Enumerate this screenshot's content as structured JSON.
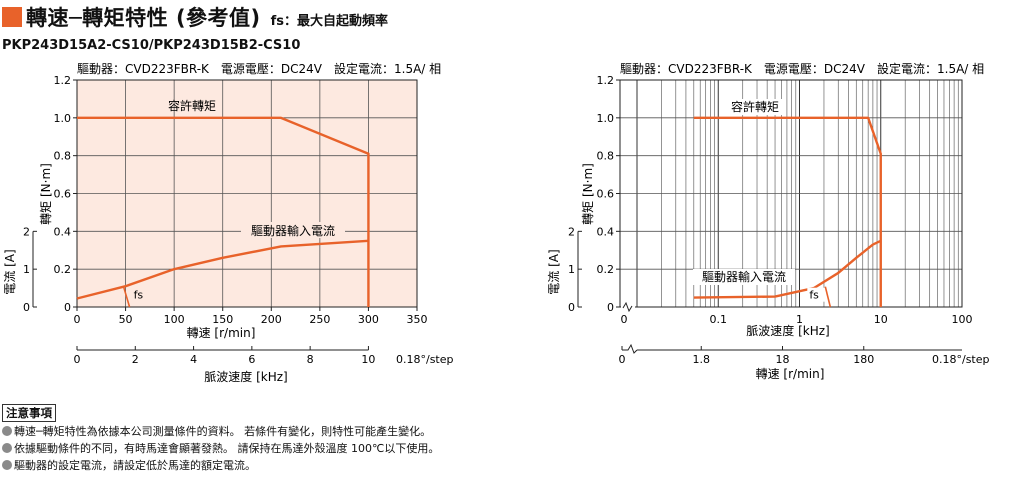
{
  "header": {
    "title": "轉速─轉矩特性 (參考值)",
    "subtitle": "fs：最大自起動頻率"
  },
  "model": "PKP243D15A2-CS10/PKP243D15B2-CS10",
  "colors": {
    "accent": "#e8622a",
    "plot_bg": "#fde9e0",
    "curve": "#e8622a"
  },
  "chart_data": [
    {
      "type": "line",
      "info": "驅動器：CVD223FBR-K　電源電壓：DC24V　設定電流：1.5A/ 相",
      "xlabel": "轉速 [r/min]",
      "ylabel": "轉矩 [N·m]",
      "y2label": "電流 [A]",
      "x2label": "脈波速度 [kHz]",
      "x2_unit": "0.18°/step",
      "xscale": "linear",
      "xlim": [
        0,
        350
      ],
      "ylim": [
        0,
        1.2
      ],
      "xticks": [
        "0",
        "50",
        "100",
        "150",
        "200",
        "250",
        "300",
        "350"
      ],
      "yticks": [
        "0",
        "0.2",
        "0.4",
        "0.6",
        "0.8",
        "1.0",
        "1.2"
      ],
      "y2ticks": [
        "0",
        "1",
        "2"
      ],
      "x2ticks": [
        "0",
        "2",
        "4",
        "6",
        "8",
        "10"
      ],
      "grid": true,
      "series": [
        {
          "name": "容許轉矩",
          "x": [
            0,
            210,
            300,
            300
          ],
          "y": [
            1.0,
            1.0,
            0.81,
            0.0
          ]
        },
        {
          "name": "驅動器輸入電流",
          "x": [
            0,
            50,
            100,
            150,
            210,
            300
          ],
          "y": [
            0.045,
            0.11,
            0.2,
            0.26,
            0.32,
            0.35
          ]
        }
      ],
      "fs": {
        "label": "fs",
        "x": 50,
        "y": 0.065
      }
    },
    {
      "type": "line",
      "info": "驅動器：CVD223FBR-K　電源電壓：DC24V　設定電流：1.5A/ 相",
      "xlabel": "脈波速度 [kHz]",
      "ylabel": "轉矩 [N·m]",
      "y2label": "電流 [A]",
      "x2label": "轉速 [r/min]",
      "x2_unit": "0.18°/step",
      "xscale": "log",
      "xlim": [
        0.01,
        100
      ],
      "ylim": [
        0,
        1.2
      ],
      "xticks": [
        "0",
        "0.1",
        "1",
        "10",
        "100"
      ],
      "yticks": [
        "0",
        "0.2",
        "0.4",
        "0.6",
        "0.8",
        "1.0",
        "1.2"
      ],
      "y2ticks": [
        "0",
        "1",
        "2"
      ],
      "x2ticks": [
        "0",
        "1.8",
        "18",
        "180"
      ],
      "grid": true,
      "series": [
        {
          "name": "容許轉矩",
          "x": [
            0.05,
            7,
            10,
            10
          ],
          "y": [
            1.0,
            1.0,
            0.81,
            0.0
          ]
        },
        {
          "name": "驅動器輸入電流",
          "x": [
            0.05,
            0.5,
            1.5,
            3,
            5,
            8,
            10
          ],
          "y": [
            0.05,
            0.055,
            0.1,
            0.18,
            0.26,
            0.33,
            0.35
          ]
        }
      ],
      "fs": {
        "label": "fs",
        "x": 2.2,
        "y": 0.065
      }
    }
  ],
  "notes": {
    "title": "注意事項",
    "items": [
      "轉速─轉矩特性為依據本公司測量條件的資料。 若條件有變化，則特性可能產生變化。",
      "依據驅動條件的不同，有時馬達會顯著發熱。 請保持在馬達外殼溫度 100℃以下使用。",
      "驅動器的設定電流，請設定低於馬達的額定電流。"
    ]
  }
}
